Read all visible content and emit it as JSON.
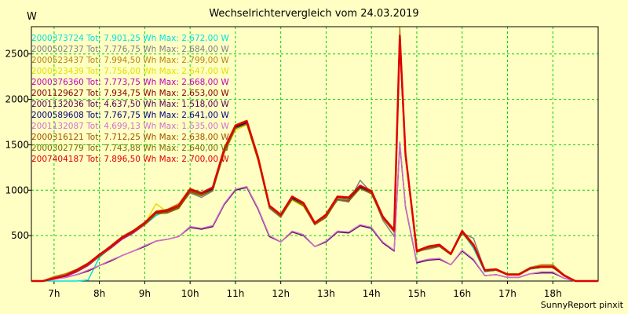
{
  "header": {
    "title": "Wechselrichtervergleich vom 24.03.2019",
    "unit": "W"
  },
  "footer": {
    "credit": "SunnyReport pinxit"
  },
  "chart_data": {
    "type": "line",
    "title": "Wechselrichtervergleich vom 24.03.2019",
    "ylabel": "W",
    "xlabel": "",
    "xlim": [
      6.5,
      19.0
    ],
    "ylim": [
      0,
      2800
    ],
    "x_ticks": [
      7,
      8,
      9,
      10,
      11,
      12,
      13,
      14,
      15,
      16,
      17,
      18
    ],
    "x_tick_labels": [
      "7h",
      "8h",
      "9h",
      "10h",
      "11h",
      "12h",
      "13h",
      "14h",
      "15h",
      "16h",
      "17h",
      "18h"
    ],
    "y_ticks": [
      500,
      1000,
      1500,
      2000,
      2500
    ],
    "y_tick_labels": [
      "500",
      "1000",
      "1500",
      "2000",
      "2500"
    ],
    "grid": true,
    "legend_position": "top-left",
    "x": [
      6.5,
      6.75,
      7.0,
      7.25,
      7.5,
      7.75,
      8.0,
      8.25,
      8.5,
      8.75,
      9.0,
      9.25,
      9.5,
      9.75,
      10.0,
      10.25,
      10.5,
      10.75,
      11.0,
      11.25,
      11.5,
      11.75,
      12.0,
      12.25,
      12.5,
      12.75,
      13.0,
      13.25,
      13.5,
      13.75,
      14.0,
      14.25,
      14.5,
      14.625,
      14.75,
      15.0,
      15.25,
      15.5,
      15.75,
      16.0,
      16.25,
      16.5,
      16.75,
      17.0,
      17.25,
      17.5,
      17.75,
      18.0,
      18.25,
      18.5,
      18.75,
      19.0
    ],
    "series": [
      {
        "name": "2000373724 Tot: 7.901,25 Wh Max: 2.672,00 W",
        "color": "#00e0e0",
        "values": [
          0,
          0,
          0,
          0,
          0,
          10,
          260,
          370,
          480,
          540,
          620,
          720,
          780,
          820,
          990,
          950,
          1010,
          1430,
          1690,
          1740,
          1350,
          820,
          720,
          910,
          840,
          640,
          700,
          920,
          910,
          1020,
          960,
          700,
          560,
          2600,
          1380,
          320,
          370,
          390,
          300,
          540,
          360,
          100,
          120,
          70,
          70,
          130,
          150,
          150,
          60,
          0,
          0,
          0
        ]
      },
      {
        "name": "2000502737 Tot: 7.776,75 Wh Max: 2.684,00 W",
        "color": "#808080",
        "values": [
          0,
          0,
          40,
          70,
          120,
          190,
          290,
          380,
          480,
          550,
          640,
          740,
          750,
          810,
          970,
          920,
          990,
          1420,
          1680,
          1730,
          1330,
          800,
          700,
          900,
          830,
          620,
          720,
          890,
          870,
          1110,
          970,
          670,
          490,
          2700,
          1400,
          330,
          350,
          380,
          290,
          530,
          470,
          120,
          130,
          70,
          70,
          140,
          160,
          160,
          70,
          0,
          0,
          0
        ]
      },
      {
        "name": "2000523437 Tot: 7.994,50 Wh Max: 2.799,00 W",
        "color": "#b8860b",
        "values": [
          0,
          0,
          50,
          80,
          130,
          200,
          290,
          390,
          490,
          560,
          650,
          770,
          790,
          850,
          1020,
          970,
          1030,
          1460,
          1720,
          1770,
          1370,
          830,
          730,
          930,
          850,
          630,
          740,
          930,
          920,
          1050,
          990,
          710,
          570,
          2790,
          1420,
          340,
          380,
          400,
          300,
          560,
          400,
          120,
          130,
          80,
          80,
          150,
          180,
          180,
          70,
          0,
          0,
          0
        ]
      },
      {
        "name": "2000523439 Tot: 7.756,00 Wh Max: 2.647,00 W",
        "color": "#e0e000",
        "values": [
          0,
          0,
          30,
          60,
          110,
          180,
          280,
          370,
          470,
          540,
          630,
          850,
          760,
          810,
          980,
          940,
          1000,
          1410,
          1660,
          1720,
          1320,
          810,
          710,
          890,
          820,
          630,
          700,
          900,
          890,
          1020,
          960,
          690,
          540,
          2620,
          1370,
          320,
          360,
          380,
          290,
          530,
          380,
          110,
          120,
          70,
          70,
          140,
          160,
          160,
          60,
          0,
          0,
          0
        ]
      },
      {
        "name": "2000376360 Tot: 7.773,75 Wh Max: 2.668,00 W",
        "color": "#c000c0",
        "values": [
          0,
          0,
          20,
          50,
          100,
          170,
          270,
          360,
          460,
          530,
          620,
          740,
          760,
          810,
          990,
          950,
          1010,
          1420,
          1690,
          1740,
          1340,
          820,
          720,
          910,
          840,
          630,
          710,
          900,
          890,
          1030,
          970,
          700,
          550,
          2650,
          1380,
          320,
          370,
          390,
          300,
          530,
          390,
          110,
          120,
          70,
          70,
          140,
          150,
          150,
          60,
          0,
          0,
          0
        ]
      },
      {
        "name": "2001129627 Tot: 7.934,75 Wh Max: 2.653,00 W",
        "color": "#800000",
        "values": [
          0,
          0,
          30,
          60,
          110,
          180,
          280,
          380,
          480,
          550,
          640,
          750,
          770,
          820,
          1000,
          960,
          1020,
          1440,
          1700,
          1750,
          1350,
          830,
          730,
          920,
          850,
          640,
          720,
          920,
          910,
          1040,
          980,
          710,
          560,
          2640,
          1390,
          330,
          370,
          390,
          300,
          540,
          390,
          110,
          120,
          70,
          70,
          140,
          160,
          160,
          60,
          0,
          0,
          0
        ]
      },
      {
        "name": "2001132036 Tot: 4.637,50 Wh Max: 1.518,00 W",
        "color": "#500050",
        "values": [
          0,
          0,
          20,
          40,
          70,
          110,
          170,
          220,
          280,
          330,
          380,
          440,
          460,
          490,
          590,
          570,
          600,
          840,
          1000,
          1030,
          790,
          490,
          430,
          540,
          500,
          380,
          430,
          540,
          530,
          610,
          580,
          420,
          330,
          1510,
          820,
          200,
          230,
          240,
          180,
          330,
          230,
          60,
          70,
          40,
          40,
          80,
          90,
          90,
          30,
          0,
          0,
          0
        ]
      },
      {
        "name": "2000589608 Tot: 7.767,75 Wh Max: 2.641,00 W",
        "color": "#000080",
        "values": [
          0,
          0,
          30,
          60,
          110,
          180,
          280,
          370,
          470,
          540,
          630,
          740,
          760,
          810,
          990,
          950,
          1010,
          1420,
          1690,
          1740,
          1340,
          820,
          720,
          910,
          840,
          630,
          710,
          900,
          890,
          1030,
          970,
          700,
          550,
          2640,
          1380,
          320,
          370,
          390,
          300,
          530,
          390,
          110,
          120,
          70,
          70,
          140,
          150,
          150,
          60,
          0,
          0,
          0
        ]
      },
      {
        "name": "2001132087 Tot: 4.699,13 Wh Max: 1.535,00 W",
        "color": "#d070d0",
        "values": [
          0,
          0,
          20,
          40,
          70,
          120,
          170,
          230,
          280,
          330,
          390,
          440,
          460,
          490,
          600,
          580,
          610,
          850,
          1010,
          1040,
          800,
          500,
          430,
          550,
          510,
          380,
          440,
          550,
          540,
          620,
          590,
          430,
          340,
          1530,
          830,
          210,
          240,
          250,
          180,
          340,
          240,
          60,
          70,
          40,
          40,
          80,
          100,
          100,
          30,
          0,
          0,
          0
        ]
      },
      {
        "name": "2000316121 Tot: 7.712,25 Wh Max: 2.638,00 W",
        "color": "#a05000",
        "values": [
          0,
          0,
          30,
          60,
          110,
          180,
          270,
          370,
          470,
          540,
          620,
          740,
          750,
          800,
          980,
          940,
          1000,
          1410,
          1680,
          1730,
          1330,
          810,
          710,
          900,
          830,
          620,
          700,
          900,
          880,
          1020,
          960,
          690,
          540,
          2630,
          1370,
          320,
          360,
          380,
          290,
          530,
          380,
          110,
          120,
          70,
          70,
          140,
          150,
          150,
          60,
          0,
          0,
          0
        ]
      },
      {
        "name": "2000302779 Tot: 7.743,88 Wh Max: 2.640,00 W",
        "color": "#7a6a00",
        "values": [
          0,
          0,
          30,
          60,
          110,
          180,
          280,
          370,
          470,
          540,
          630,
          740,
          760,
          810,
          990,
          950,
          1000,
          1420,
          1680,
          1730,
          1340,
          810,
          720,
          900,
          840,
          630,
          710,
          900,
          890,
          1020,
          970,
          700,
          550,
          2640,
          1380,
          320,
          370,
          390,
          290,
          530,
          390,
          110,
          120,
          70,
          70,
          140,
          150,
          150,
          60,
          0,
          0,
          0
        ]
      },
      {
        "name": "2007404187 Tot: 7.896,50 Wh Max: 2.700,00 W",
        "color": "#e00000",
        "values": [
          0,
          0,
          30,
          60,
          120,
          190,
          290,
          380,
          480,
          550,
          640,
          760,
          780,
          830,
          1010,
          970,
          1030,
          1450,
          1710,
          1760,
          1360,
          830,
          730,
          930,
          860,
          640,
          730,
          930,
          920,
          1050,
          990,
          710,
          560,
          2700,
          1400,
          330,
          380,
          400,
          300,
          550,
          400,
          120,
          130,
          70,
          70,
          140,
          160,
          160,
          60,
          0,
          0,
          0
        ]
      }
    ]
  }
}
